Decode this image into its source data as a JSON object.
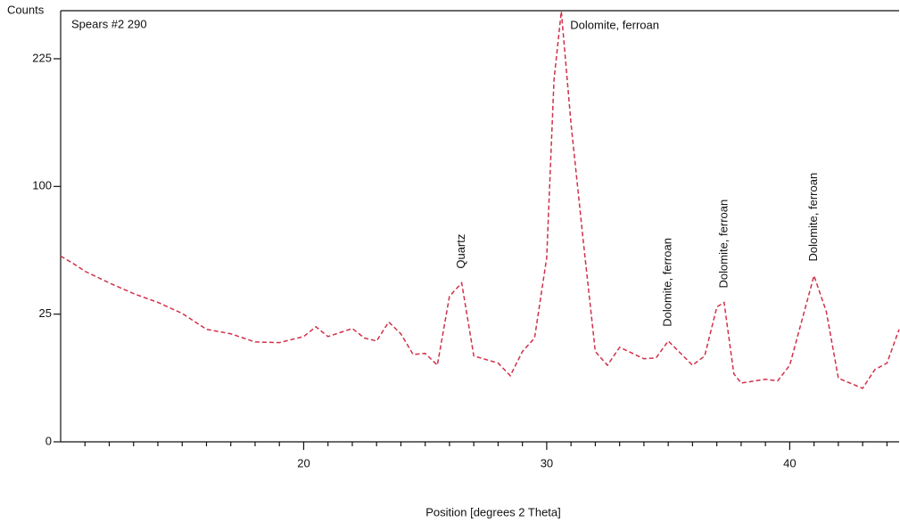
{
  "chart_data": {
    "type": "line",
    "y_label": "Counts",
    "x_label": "Position [degrees 2 Theta]",
    "yscale": "sqrt",
    "xlim": [
      10,
      44.5
    ],
    "ylim": [
      0,
      285
    ],
    "xticks": [
      20,
      30,
      40
    ],
    "xminorticks": [
      11,
      12,
      13,
      14,
      15,
      16,
      17,
      18,
      19,
      21,
      22,
      23,
      24,
      25,
      26,
      27,
      28,
      29,
      31,
      32,
      33,
      34,
      35,
      36,
      37,
      38,
      39,
      41,
      42,
      43,
      44
    ],
    "yticks": [
      0,
      25,
      100,
      225
    ],
    "series": [
      {
        "name": "Spears #2 290",
        "color": "#d0304a",
        "dashed": true,
        "x": [
          10,
          10.5,
          11,
          12,
          13,
          14,
          15,
          16,
          17,
          18,
          19,
          20,
          20.5,
          21,
          22,
          22.5,
          23,
          23.5,
          24,
          24.5,
          25,
          25.5,
          26,
          26.5,
          27,
          28,
          28.5,
          29,
          29.5,
          30,
          30.3,
          30.6,
          31,
          31.5,
          32,
          32.5,
          33,
          34,
          34.5,
          35,
          36,
          36.5,
          37,
          37.3,
          37.7,
          38,
          39,
          39.5,
          40,
          40.5,
          41,
          41.5,
          42,
          43,
          43.5,
          44,
          44.5
        ],
        "values": [
          52.9,
          48.9,
          44.6,
          38.7,
          33.7,
          29.8,
          25.3,
          19.4,
          17.9,
          15.3,
          15.1,
          17.0,
          20.3,
          17.0,
          19.7,
          16.5,
          15.6,
          22.0,
          17.9,
          11.7,
          12.0,
          9.0,
          32.5,
          38.7,
          11.3,
          9.5,
          6.7,
          12.5,
          16.5,
          51.9,
          201,
          284,
          155,
          62.4,
          12.5,
          9.0,
          13.7,
          10.6,
          10.8,
          15.6,
          9.0,
          11.3,
          27.9,
          29.8,
          7.1,
          5.3,
          6.0,
          5.7,
          9.0,
          22.6,
          42.3,
          26.1,
          6.2,
          4.4,
          8.0,
          9.5,
          19.4
        ]
      }
    ],
    "annotations": [
      {
        "text": "Quartz",
        "x": 26.5,
        "y": 38.7,
        "orientation": "vertical"
      },
      {
        "text": "Dolomite, ferroan",
        "x": 30.6,
        "y": 284,
        "orientation": "horizontal"
      },
      {
        "text": "Dolomite, ferroan",
        "x": 35,
        "y": 15.6,
        "orientation": "vertical"
      },
      {
        "text": "Dolomite, ferroan",
        "x": 37.3,
        "y": 29.8,
        "orientation": "vertical"
      },
      {
        "text": "Dolomite, ferroan",
        "x": 41,
        "y": 42.3,
        "orientation": "vertical"
      }
    ]
  }
}
